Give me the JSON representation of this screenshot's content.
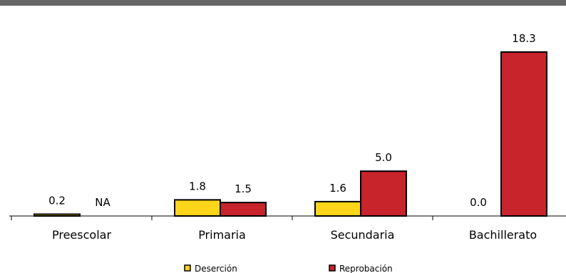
{
  "chart_data": {
    "type": "bar",
    "categories": [
      "Preescolar",
      "Primaria",
      "Secundaria",
      "Bachillerato"
    ],
    "series": [
      {
        "name": "Deserción",
        "color": "#ffd51a",
        "values": [
          0.2,
          1.8,
          1.6,
          0.0
        ],
        "labels": [
          "0.2",
          "1.8",
          "1.6",
          "0.0"
        ]
      },
      {
        "name": "Reprobación",
        "color": "#c8242b",
        "values": [
          null,
          1.5,
          5.0,
          18.3
        ],
        "labels": [
          "NA",
          "1.5",
          "5.0",
          "18.3"
        ]
      }
    ],
    "ylim": [
      0,
      18.3
    ],
    "grid": false,
    "legend_position": "bottom"
  }
}
